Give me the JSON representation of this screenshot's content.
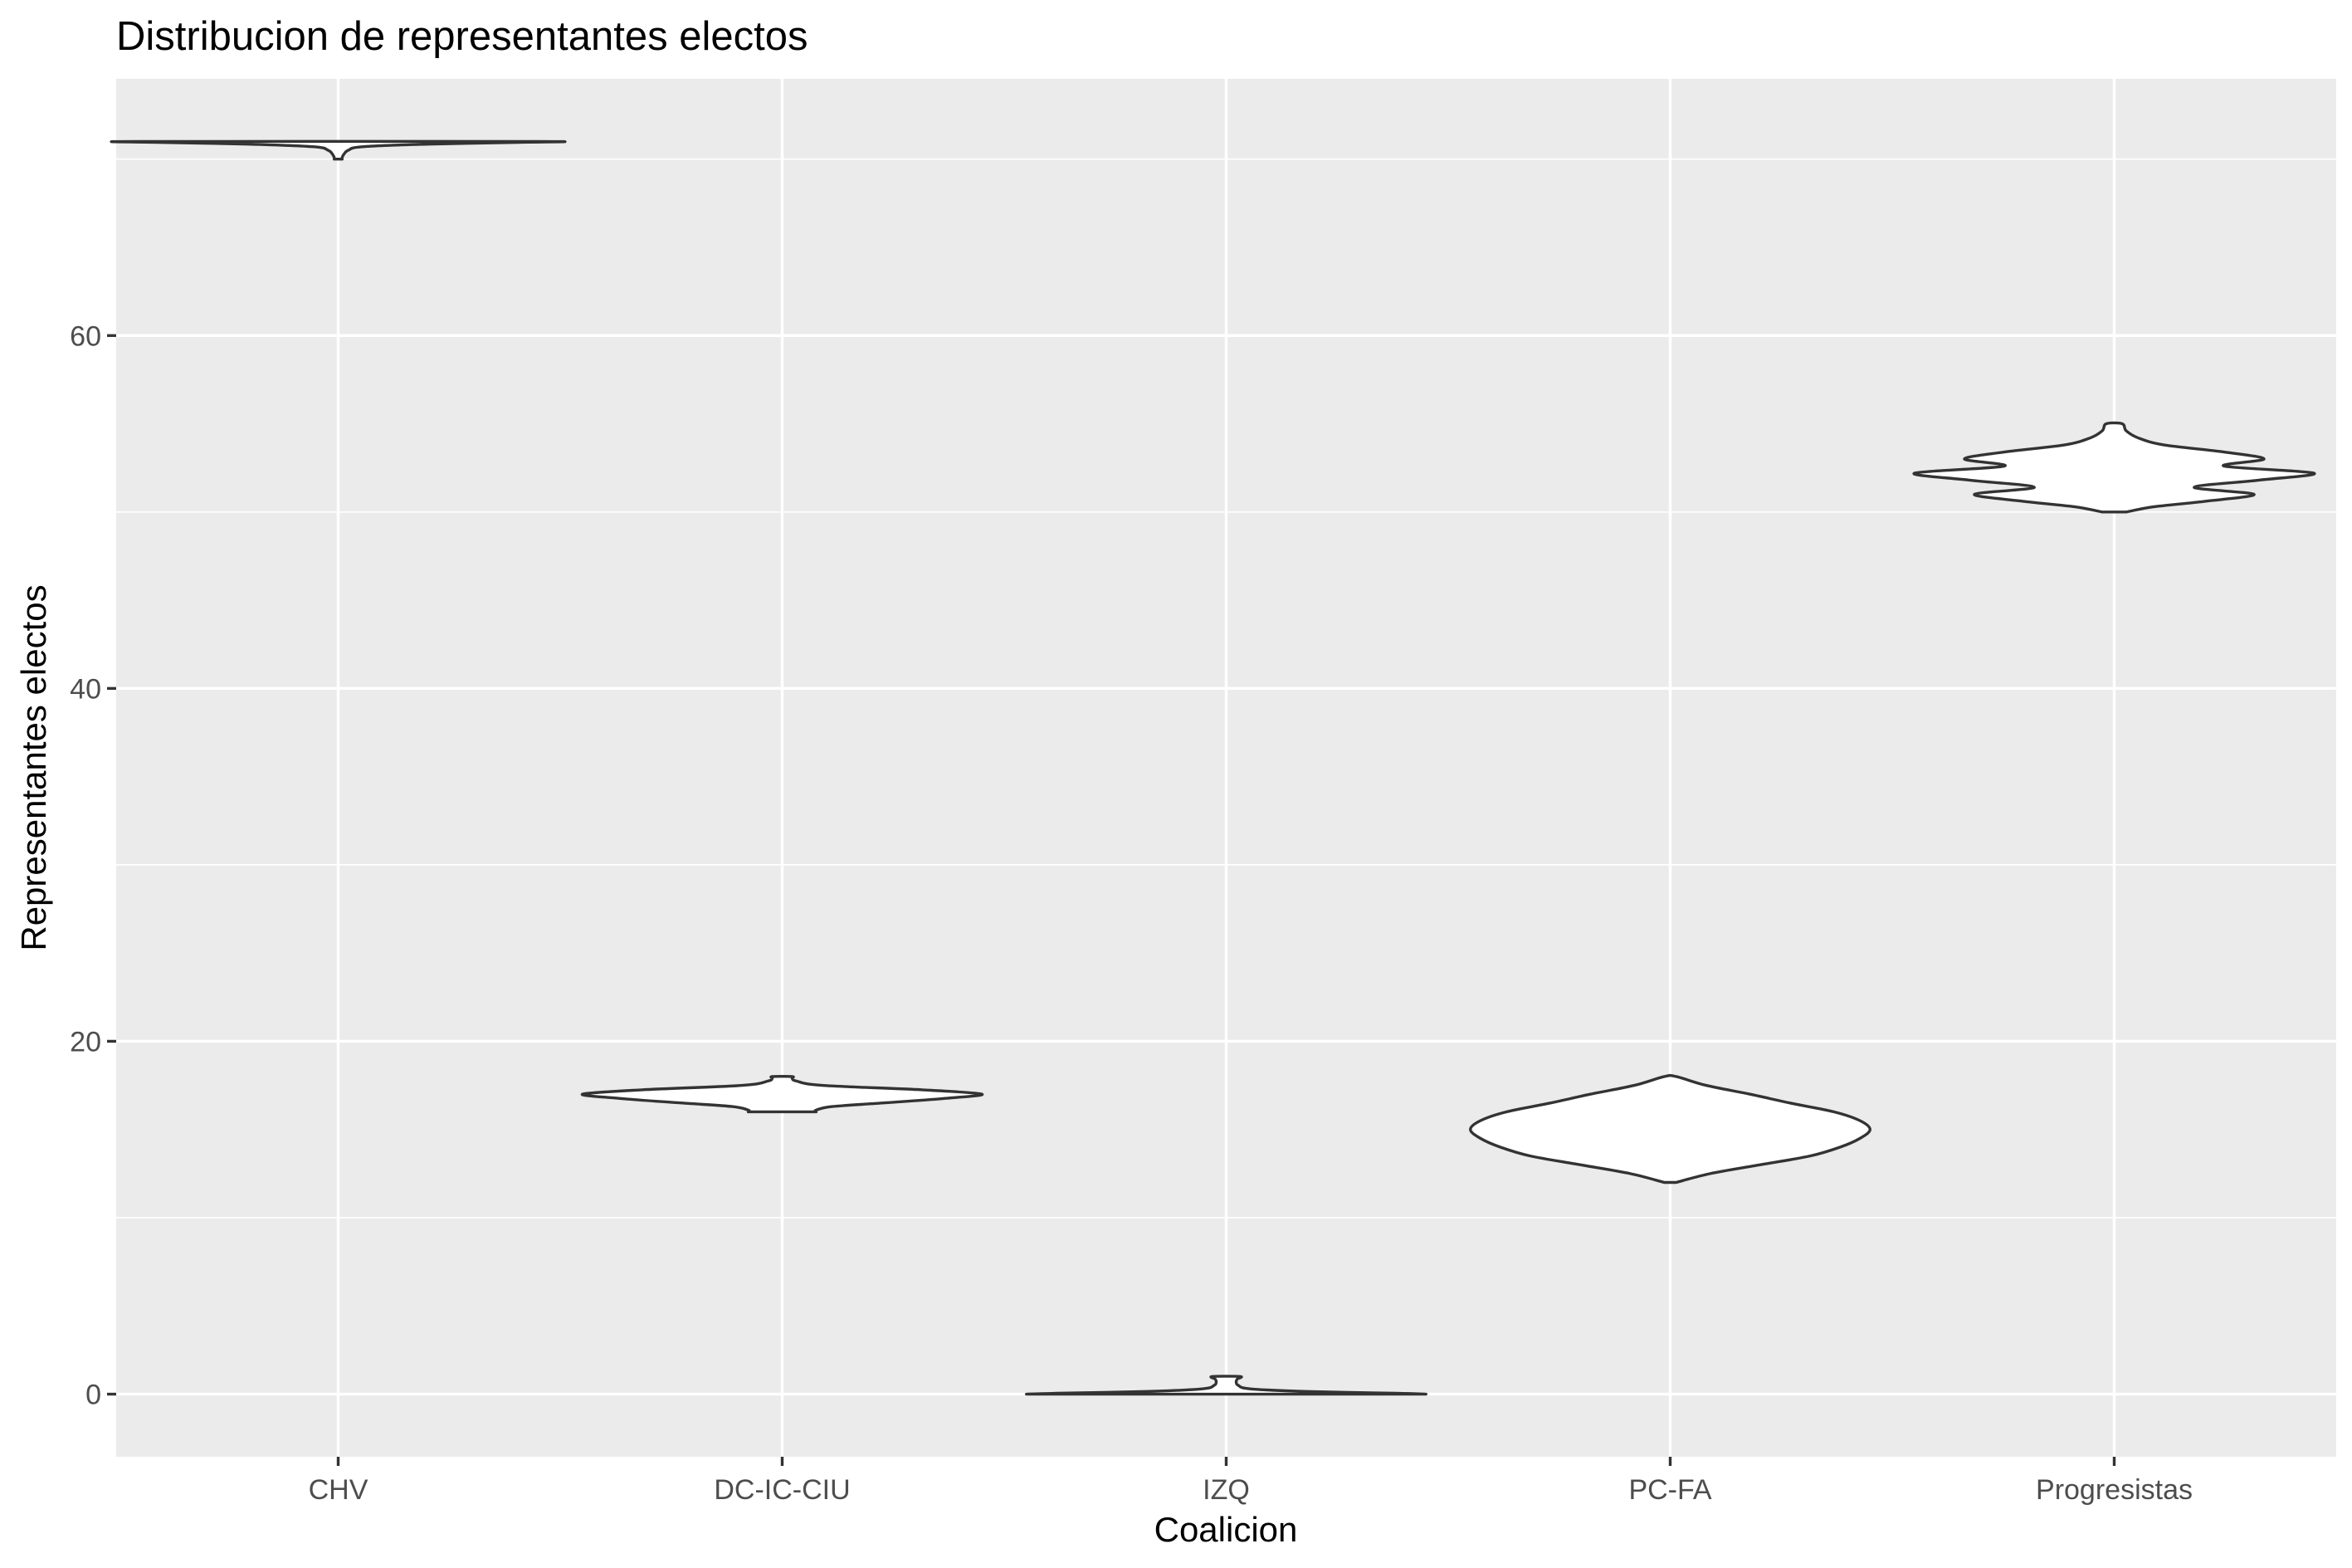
{
  "chart_data": {
    "type": "violin",
    "title": "Distribucion de representantes electos",
    "xlabel": "Coalicion",
    "ylabel": "Representantes electos",
    "categories": [
      "CHV",
      "DC-IC-CIU",
      "IZQ",
      "PC-FA",
      "Progresistas"
    ],
    "y_ticks": [
      0,
      20,
      40,
      60
    ],
    "ylim": [
      -3.55,
      74.55
    ],
    "grid": true,
    "colors": {
      "panel": "#ebebeb",
      "grid": "#ffffff",
      "outline": "#333333",
      "fill": "#ffffff"
    },
    "series": [
      {
        "category": "CHV",
        "min": 70,
        "max": 71,
        "profile": [
          [
            70,
            0.02
          ],
          [
            70.1,
            0.02
          ],
          [
            70.3,
            0.03
          ],
          [
            70.5,
            0.05
          ],
          [
            70.7,
            0.12
          ],
          [
            70.85,
            0.45
          ],
          [
            70.95,
            0.9
          ],
          [
            71,
            1.0
          ]
        ]
      },
      {
        "category": "DC-IC-CIU",
        "min": 16,
        "max": 18,
        "profile": [
          [
            16,
            0.17
          ],
          [
            16.1,
            0.17
          ],
          [
            16.3,
            0.25
          ],
          [
            16.5,
            0.5
          ],
          [
            16.75,
            0.8
          ],
          [
            17,
            1.0
          ],
          [
            17.25,
            0.7
          ],
          [
            17.5,
            0.2
          ],
          [
            17.75,
            0.07
          ],
          [
            17.9,
            0.05
          ],
          [
            18,
            0.05
          ]
        ]
      },
      {
        "category": "IZQ",
        "min": 0,
        "max": 1,
        "profile": [
          [
            0,
            1.0
          ],
          [
            0.05,
            0.85
          ],
          [
            0.15,
            0.4
          ],
          [
            0.3,
            0.12
          ],
          [
            0.5,
            0.06
          ],
          [
            0.7,
            0.05
          ],
          [
            0.85,
            0.055
          ],
          [
            1,
            0.07
          ]
        ]
      },
      {
        "category": "PC-FA",
        "min": 12,
        "max": 18,
        "profile": [
          [
            12,
            0.03
          ],
          [
            12.5,
            0.2
          ],
          [
            13,
            0.45
          ],
          [
            13.5,
            0.7
          ],
          [
            14,
            0.85
          ],
          [
            14.5,
            0.95
          ],
          [
            15,
            1.0
          ],
          [
            15.5,
            0.95
          ],
          [
            16,
            0.82
          ],
          [
            16.5,
            0.6
          ],
          [
            17,
            0.4
          ],
          [
            17.5,
            0.18
          ],
          [
            18,
            0.03
          ]
        ]
      },
      {
        "category": "Progresistas",
        "min": 50,
        "max": 55,
        "profile": [
          [
            50,
            0.06
          ],
          [
            50.3,
            0.2
          ],
          [
            50.6,
            0.45
          ],
          [
            51,
            0.7
          ],
          [
            51.4,
            0.4
          ],
          [
            51.8,
            0.72
          ],
          [
            52.2,
            1.0
          ],
          [
            52.6,
            0.55
          ],
          [
            53,
            0.75
          ],
          [
            53.4,
            0.55
          ],
          [
            53.8,
            0.25
          ],
          [
            54.2,
            0.12
          ],
          [
            54.6,
            0.06
          ],
          [
            55,
            0.04
          ]
        ]
      }
    ]
  }
}
